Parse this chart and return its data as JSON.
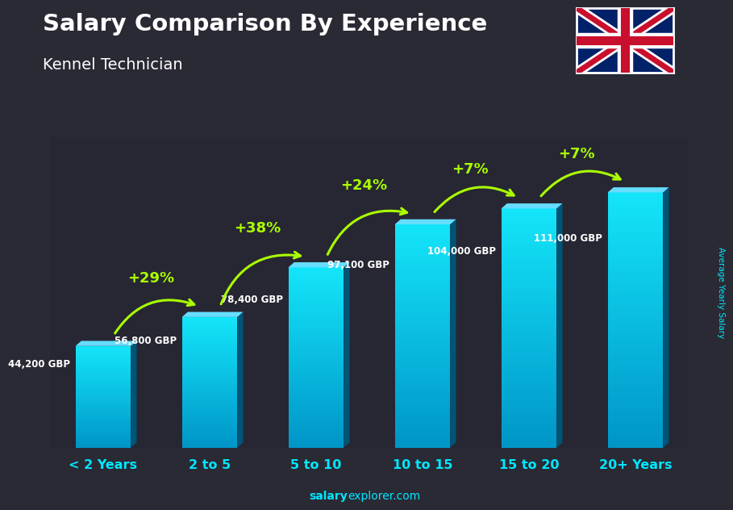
{
  "title_line1": "Salary Comparison By Experience",
  "title_line2": "Kennel Technician",
  "categories": [
    "< 2 Years",
    "2 to 5",
    "5 to 10",
    "10 to 15",
    "15 to 20",
    "20+ Years"
  ],
  "values": [
    44200,
    56800,
    78400,
    97100,
    104000,
    111000
  ],
  "salary_labels": [
    "44,200 GBP",
    "56,800 GBP",
    "78,400 GBP",
    "97,100 GBP",
    "104,000 GBP",
    "111,000 GBP"
  ],
  "pct_changes": [
    null,
    "+29%",
    "+38%",
    "+24%",
    "+7%",
    "+7%"
  ],
  "text_color_white": "#ffffff",
  "text_color_cyan": "#00e8ff",
  "text_color_green": "#aaff00",
  "ylabel": "Average Yearly Salary",
  "footer_normal": "explorer.com",
  "footer_bold": "salary",
  "ylim_max": 135000,
  "bar_width": 0.52,
  "bar_color_light": "#00ccee",
  "bar_color_mid": "#00aacc",
  "bar_color_dark": "#007799",
  "bar_color_side": "#005577",
  "bar_color_top": "#55eeff",
  "bg_color": "#3a3a4a"
}
